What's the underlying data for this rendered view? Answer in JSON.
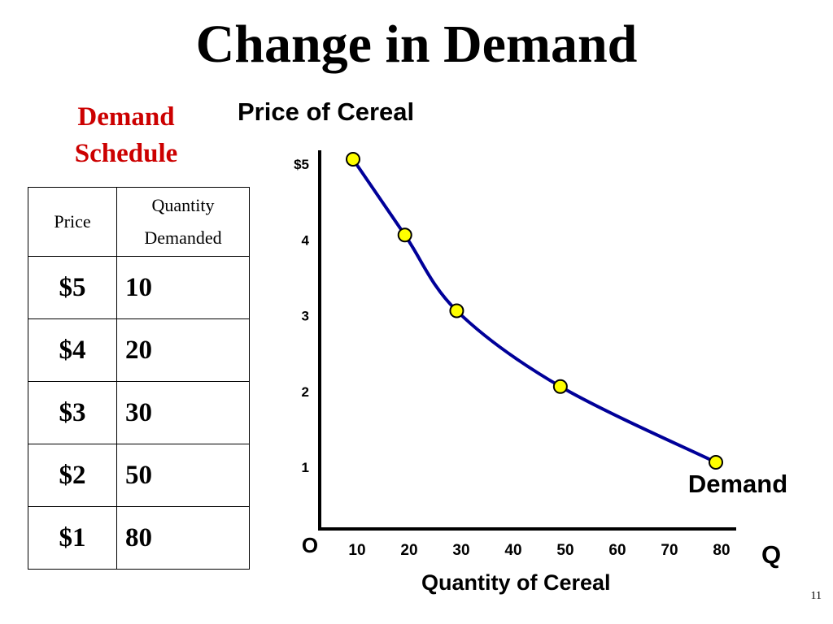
{
  "slide": {
    "title": "Change in Demand",
    "number": "11"
  },
  "schedule": {
    "heading_line1": "Demand",
    "heading_line2": "Schedule",
    "col_price": "Price",
    "col_qty_line1": "Quantity",
    "col_qty_line2": "Demanded",
    "rows": [
      {
        "price": "$5",
        "qty": "10"
      },
      {
        "price": "$4",
        "qty": "20"
      },
      {
        "price": "$3",
        "qty": "30"
      },
      {
        "price": "$2",
        "qty": "50"
      },
      {
        "price": "$1",
        "qty": "80"
      }
    ]
  },
  "chart_data": {
    "type": "line",
    "title": "Price of Cereal",
    "xlabel": "Quantity of Cereal",
    "y_axis_letter": "",
    "x_axis_letter": "Q",
    "origin_label": "O",
    "x_ticks": [
      "10",
      "20",
      "30",
      "40",
      "50",
      "60",
      "70",
      "80"
    ],
    "y_ticks": [
      "$5",
      "4",
      "3",
      "2",
      "1"
    ],
    "xlim": [
      0,
      80
    ],
    "ylim": [
      0,
      5
    ],
    "series": [
      {
        "name": "Demand",
        "color": "#000099",
        "marker_color": "#ffff00",
        "points": [
          {
            "x": 10,
            "y": 5
          },
          {
            "x": 20,
            "y": 4
          },
          {
            "x": 30,
            "y": 3
          },
          {
            "x": 50,
            "y": 2
          },
          {
            "x": 80,
            "y": 1
          }
        ]
      }
    ]
  }
}
